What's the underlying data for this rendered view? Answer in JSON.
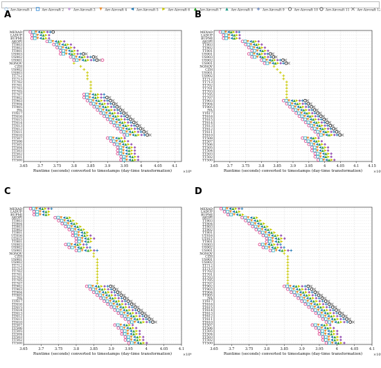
{
  "legend": [
    {
      "name": "Arr-Aircraft 1",
      "marker": "circle",
      "color": "#9bc3e6"
    },
    {
      "name": "Arr-Aircraft 2",
      "marker": "square",
      "color": "#3a8fd8"
    },
    {
      "name": "Arr-Aircraft 3",
      "marker": "diamond",
      "color": "#c9a2dc"
    },
    {
      "name": "Arr-Aircraft 4",
      "marker": "triangle-down",
      "color": "#e88a2d"
    },
    {
      "name": "Arr-Aircraft 5",
      "marker": "triangle-left",
      "color": "#1f77b4"
    },
    {
      "name": "Arr-Aircraft 6",
      "marker": "triangle-right",
      "color": "#c8c800"
    },
    {
      "name": "Arr-Aircraft 7",
      "marker": "triangle-up",
      "color": "#2ca02c"
    },
    {
      "name": "Arr-Aircraft 8",
      "marker": "triangle-up",
      "color": "#1f9e89"
    },
    {
      "name": "Arr-Aircraft 9",
      "marker": "plus",
      "color": "#4a6fb5"
    },
    {
      "name": "Arr-Aircraft 10",
      "marker": "circle",
      "color": "#555555"
    },
    {
      "name": "Arr-Aircraft 11",
      "marker": "circle",
      "color": "#444444"
    },
    {
      "name": "Arr-Aircraft 12",
      "marker": "x",
      "color": "#777777"
    }
  ],
  "colors": {
    "pink": "#e0478f",
    "cyan": "#3fb8c8",
    "orange": "#e88a2d",
    "green": "#2ca02c",
    "blue": "#1f77b4",
    "yellow": "#c8c800",
    "purple": "#9b59b6",
    "black": "#222222",
    "grid": "#d9d9d9"
  },
  "chart_data": [
    {
      "panel": "A",
      "type": "scatter",
      "xlabel": "Runtime (seconds) converted to timestamps (day-time transformation)",
      "xticks": [
        "3.65",
        "3.7",
        "3.75",
        "3.8",
        "3.85",
        "3.9",
        "3.95",
        "4",
        "4.05",
        "4.1"
      ],
      "xlim": [
        3.65,
        4.12
      ],
      "exponent": "×10⁴",
      "categories": [
        "MEXAD",
        "LADUP",
        "BUPMI",
        "AKOPI",
        "TT803",
        "TT802",
        "TT801",
        "US903",
        "US902",
        "US901",
        "NONOV",
        "CZH",
        "US902",
        "US903",
        "TT712",
        "TT713",
        "TT702",
        "TT701",
        "TT703",
        "TT705",
        "TT707",
        "TT902",
        "TT903",
        "TT904",
        "TT905",
        "JYA",
        "TT617",
        "TT616",
        "TT615",
        "TT614",
        "TT613",
        "TT612",
        "TT611",
        "TT610",
        "TT507",
        "TT506",
        "TT505",
        "TT504",
        "TT503",
        "TT502",
        "TT501",
        "TT500"
      ],
      "rows": [
        [
          3.67,
          0.75
        ],
        [
          3.675,
          0.6
        ],
        [
          3.675,
          0.6
        ],
        [
          3.72,
          0.6
        ],
        [
          3.74,
          0.6
        ],
        [
          3.75,
          0.6
        ],
        [
          3.76,
          0.6
        ],
        [
          3.76,
          0.8
        ],
        [
          3.79,
          0.8
        ],
        [
          3.8,
          0.9
        ],
        [
          3.8,
          0
        ],
        [
          3.82,
          0
        ],
        [
          3.83,
          0
        ],
        [
          3.84,
          0
        ],
        [
          3.84,
          0
        ],
        [
          3.84,
          0
        ],
        [
          3.85,
          0
        ],
        [
          3.85,
          0
        ],
        [
          3.85,
          0
        ],
        [
          3.85,
          0
        ],
        [
          3.83,
          0.7
        ],
        [
          3.83,
          0.8
        ],
        [
          3.84,
          0.8
        ],
        [
          3.85,
          0.8
        ],
        [
          3.86,
          0.8
        ],
        [
          3.87,
          0.8
        ],
        [
          3.88,
          0.8
        ],
        [
          3.89,
          0.8
        ],
        [
          3.9,
          0.8
        ],
        [
          3.91,
          0.8
        ],
        [
          3.92,
          0.8
        ],
        [
          3.93,
          0.8
        ],
        [
          3.94,
          0.8
        ],
        [
          3.95,
          0.8
        ],
        [
          3.9,
          0.6
        ],
        [
          3.91,
          0.6
        ],
        [
          3.92,
          0.6
        ],
        [
          3.93,
          0.6
        ],
        [
          3.93,
          0.6
        ],
        [
          3.93,
          0.6
        ],
        [
          3.94,
          0.6
        ],
        [
          3.94,
          0.6
        ]
      ]
    },
    {
      "panel": "B",
      "type": "scatter",
      "xlabel": "Runtime (seconds) converted to timestamps (day-time transformation)",
      "xticks": [
        "3.65",
        "3.7",
        "3.75",
        "3.8",
        "3.85",
        "3.9",
        "3.95",
        "4",
        "4.05",
        "4.1",
        "4.15"
      ],
      "xlim": [
        3.65,
        4.15
      ],
      "exponent": "×10⁴",
      "categories": [
        "MEXAD",
        "LADUP",
        "BUPMI",
        "AKOPI",
        "TT803",
        "TT802",
        "TT801",
        "US901",
        "US903",
        "US902",
        "US901",
        "NONOV",
        "CZH",
        "US901",
        "US902",
        "TT712",
        "TT713",
        "TT702",
        "TT701",
        "TT703",
        "TT705",
        "TT707",
        "TT903",
        "TT904",
        "TT905",
        "JYA",
        "TT617",
        "TT616",
        "TT615",
        "TT614",
        "TT613",
        "TT612",
        "TT611",
        "TT610",
        "TT508",
        "TT507",
        "TT506",
        "TT505",
        "TT504",
        "TT503",
        "TT502",
        "TT500"
      ],
      "rows": [
        [
          3.67,
          0.7
        ],
        [
          3.68,
          0.6
        ],
        [
          3.68,
          0.6
        ],
        [
          3.74,
          0.6
        ],
        [
          3.75,
          0.6
        ],
        [
          3.76,
          0.6
        ],
        [
          3.77,
          0.6
        ],
        [
          3.76,
          0.8
        ],
        [
          3.77,
          0.8
        ],
        [
          3.8,
          0.8
        ],
        [
          3.81,
          0.8
        ],
        [
          3.84,
          0
        ],
        [
          3.85,
          0
        ],
        [
          3.86,
          0
        ],
        [
          3.87,
          0
        ],
        [
          3.87,
          0
        ],
        [
          3.88,
          0
        ],
        [
          3.88,
          0
        ],
        [
          3.88,
          0
        ],
        [
          3.88,
          0
        ],
        [
          3.88,
          0
        ],
        [
          3.88,
          0
        ],
        [
          3.87,
          0.8
        ],
        [
          3.88,
          0.8
        ],
        [
          3.89,
          0.8
        ],
        [
          3.9,
          0.8
        ],
        [
          3.91,
          0.8
        ],
        [
          3.92,
          0.8
        ],
        [
          3.93,
          0.8
        ],
        [
          3.94,
          0.8
        ],
        [
          3.95,
          0.8
        ],
        [
          3.96,
          0.8
        ],
        [
          3.97,
          0.8
        ],
        [
          3.98,
          0.8
        ],
        [
          3.93,
          0.6
        ],
        [
          3.94,
          0.6
        ],
        [
          3.95,
          0.6
        ],
        [
          3.96,
          0.6
        ],
        [
          3.96,
          0.6
        ],
        [
          3.97,
          0.6
        ],
        [
          3.97,
          0.6
        ],
        [
          3.98,
          0.6
        ]
      ]
    },
    {
      "panel": "C",
      "type": "scatter",
      "xlabel": "Runtime (seconds) converted to timestamps (day-time transformation)",
      "xticks": [
        "3.65",
        "3.7",
        "3.75",
        "3.8",
        "3.85",
        "3.9",
        "3.95",
        "4",
        "4.05",
        "4.1"
      ],
      "xlim": [
        3.65,
        4.1
      ],
      "exponent": "×10⁴",
      "categories": [
        "MEXAD",
        "LADUP",
        "BUPMI",
        "AKOPI",
        "TT803",
        "TT804",
        "TT803",
        "TT802",
        "TT801",
        "UT816",
        "UT815",
        "TT801",
        "US903",
        "US902",
        "US901",
        "NONOV",
        "CZH",
        "US901",
        "US902",
        "TT712",
        "TT713",
        "TT702",
        "TT701",
        "TT703",
        "TT705",
        "TT707",
        "TT902",
        "TT903",
        "TT904",
        "TT905",
        "JYA",
        "TT617",
        "TT616",
        "TT615",
        "TT614",
        "TT613",
        "TT612",
        "TT611",
        "TT610",
        "TT507",
        "TT506",
        "TT505",
        "TT504",
        "TT503",
        "TT502",
        "TT500"
      ],
      "rows": [
        [
          3.67,
          0.7
        ],
        [
          3.68,
          0.5
        ],
        [
          3.68,
          0.5
        ],
        [
          3.74,
          0.5
        ],
        [
          3.75,
          0.5
        ],
        [
          3.76,
          0.5
        ],
        [
          3.77,
          0.5
        ],
        [
          3.78,
          0.5
        ],
        [
          3.79,
          0.5
        ],
        [
          3.79,
          0.6
        ],
        [
          3.8,
          0.6
        ],
        [
          3.8,
          0.5
        ],
        [
          3.77,
          0.7
        ],
        [
          3.78,
          0.7
        ],
        [
          3.8,
          0.7
        ],
        [
          3.85,
          0
        ],
        [
          3.85,
          0
        ],
        [
          3.86,
          0
        ],
        [
          3.86,
          0
        ],
        [
          3.86,
          0
        ],
        [
          3.86,
          0
        ],
        [
          3.86,
          0
        ],
        [
          3.86,
          0
        ],
        [
          3.86,
          0
        ],
        [
          3.86,
          0
        ],
        [
          3.86,
          0
        ],
        [
          3.83,
          0.8
        ],
        [
          3.84,
          0.8
        ],
        [
          3.85,
          0.8
        ],
        [
          3.86,
          0.8
        ],
        [
          3.87,
          0.8
        ],
        [
          3.88,
          0.8
        ],
        [
          3.89,
          0.8
        ],
        [
          3.9,
          0.8
        ],
        [
          3.91,
          0.8
        ],
        [
          3.92,
          0.8
        ],
        [
          3.93,
          0.8
        ],
        [
          3.94,
          0.8
        ],
        [
          3.95,
          0.8
        ],
        [
          3.91,
          0.6
        ],
        [
          3.92,
          0.6
        ],
        [
          3.93,
          0.6
        ],
        [
          3.93,
          0.6
        ],
        [
          3.94,
          0.6
        ],
        [
          3.94,
          0.6
        ],
        [
          3.95,
          0.6
        ]
      ]
    },
    {
      "panel": "D",
      "type": "scatter",
      "xlabel": "Runtime (seconds) converted to timestamps (day-time transformation)",
      "xticks": [
        "3.65",
        "3.7",
        "3.75",
        "3.8",
        "3.85",
        "3.9",
        "3.95",
        "4",
        "4.05",
        "4.1"
      ],
      "xlim": [
        3.65,
        4.1
      ],
      "exponent": "×10⁴",
      "categories": [
        "MEXAD",
        "LADUP",
        "BUPMI",
        "AKOPI",
        "TT803",
        "TT804",
        "TT803",
        "TT802",
        "TT801",
        "UT816",
        "UT815",
        "TT801",
        "US903",
        "US902",
        "US901",
        "NONOV",
        "CZH",
        "US901",
        "US902",
        "TT712",
        "TT713",
        "TT702",
        "TT701",
        "TT703",
        "TT705",
        "TT707",
        "TT902",
        "TT903",
        "TT904",
        "TT905",
        "JYA",
        "TT617",
        "TT616",
        "TT615",
        "TT614",
        "TT613",
        "TT612",
        "TT611",
        "TT610",
        "TT507",
        "TT506",
        "TT505",
        "TT504",
        "TT503",
        "TT502",
        "TT500"
      ],
      "rows": [
        [
          3.67,
          0.7
        ],
        [
          3.68,
          0.5
        ],
        [
          3.69,
          0.5
        ],
        [
          3.73,
          0.5
        ],
        [
          3.74,
          0.5
        ],
        [
          3.75,
          0.5
        ],
        [
          3.76,
          0.5
        ],
        [
          3.77,
          0.5
        ],
        [
          3.78,
          0.5
        ],
        [
          3.79,
          0.6
        ],
        [
          3.8,
          0.6
        ],
        [
          3.8,
          0.5
        ],
        [
          3.78,
          0.7
        ],
        [
          3.79,
          0.7
        ],
        [
          3.81,
          0.7
        ],
        [
          3.85,
          0
        ],
        [
          3.86,
          0
        ],
        [
          3.86,
          0
        ],
        [
          3.86,
          0
        ],
        [
          3.86,
          0
        ],
        [
          3.86,
          0
        ],
        [
          3.86,
          0
        ],
        [
          3.86,
          0
        ],
        [
          3.86,
          0
        ],
        [
          3.86,
          0
        ],
        [
          3.86,
          0
        ],
        [
          3.85,
          0.8
        ],
        [
          3.86,
          0.8
        ],
        [
          3.87,
          0.8
        ],
        [
          3.88,
          0.8
        ],
        [
          3.89,
          0.8
        ],
        [
          3.9,
          0.8
        ],
        [
          3.91,
          0.8
        ],
        [
          3.92,
          0.8
        ],
        [
          3.93,
          0.8
        ],
        [
          3.94,
          0.8
        ],
        [
          3.95,
          0.8
        ],
        [
          3.96,
          0.8
        ],
        [
          3.97,
          0.8
        ],
        [
          3.93,
          0.6
        ],
        [
          3.94,
          0.6
        ],
        [
          3.95,
          0.6
        ],
        [
          3.95,
          0.6
        ],
        [
          3.96,
          0.6
        ],
        [
          3.96,
          0.6
        ],
        [
          3.97,
          0.6
        ]
      ]
    }
  ]
}
